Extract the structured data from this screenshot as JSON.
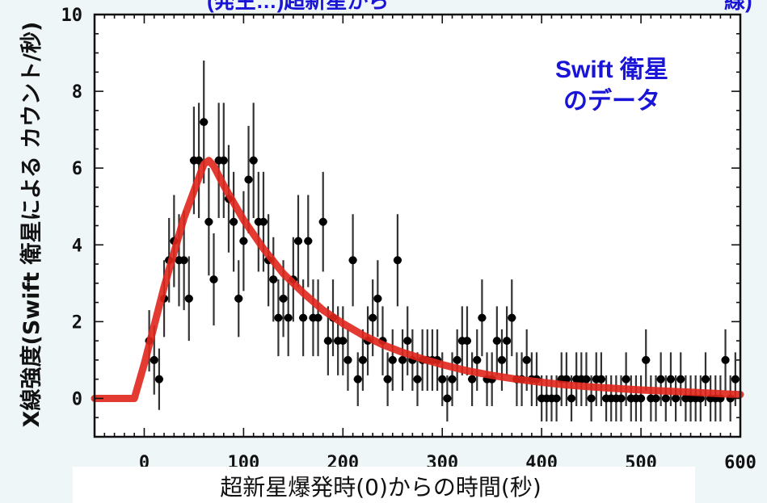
{
  "page_title_fragment_left": "(発生…)超新星から",
  "page_title_fragment_right": "線)",
  "chart_data": {
    "type": "scatter",
    "title": "",
    "xlabel": "超新星爆発時(0)からの時間(秒)",
    "ylabel": "X線強度(Swift 衛星による カウント/秒)",
    "xlim": [
      -50,
      600
    ],
    "ylim": [
      -1,
      10
    ],
    "xticks": [
      0,
      100,
      200,
      300,
      400,
      500,
      600
    ],
    "yticks": [
      0,
      2,
      4,
      6,
      8,
      10
    ],
    "x_tick_labels": [
      "0",
      "100",
      "200",
      "300",
      "400",
      "500",
      "600"
    ],
    "y_tick_labels": [
      "0",
      "2",
      "4",
      "6",
      "8",
      "10"
    ],
    "annotation": [
      "Swift 衛星",
      "のデータ"
    ],
    "grid": false,
    "series": [
      {
        "kind": "points_with_error_bars",
        "color": "#000000",
        "points": [
          [
            5,
            1.5,
            0.8
          ],
          [
            10,
            1.0,
            0.9
          ],
          [
            15,
            0.5,
            0.8
          ],
          [
            20,
            2.6,
            1.0
          ],
          [
            25,
            3.6,
            1.1
          ],
          [
            30,
            4.1,
            1.2
          ],
          [
            35,
            3.6,
            1.2
          ],
          [
            40,
            3.6,
            1.3
          ],
          [
            45,
            2.6,
            1.1
          ],
          [
            50,
            6.2,
            1.4
          ],
          [
            55,
            6.2,
            1.5
          ],
          [
            60,
            7.2,
            1.6
          ],
          [
            65,
            4.6,
            1.4
          ],
          [
            70,
            3.1,
            1.2
          ],
          [
            75,
            6.2,
            1.5
          ],
          [
            80,
            6.2,
            1.5
          ],
          [
            85,
            5.2,
            1.4
          ],
          [
            90,
            4.6,
            1.3
          ],
          [
            95,
            2.6,
            1.0
          ],
          [
            100,
            4.1,
            1.3
          ],
          [
            105,
            5.7,
            1.4
          ],
          [
            110,
            6.2,
            1.5
          ],
          [
            115,
            4.6,
            1.3
          ],
          [
            120,
            4.6,
            1.3
          ],
          [
            125,
            3.6,
            1.2
          ],
          [
            130,
            3.1,
            1.1
          ],
          [
            135,
            2.1,
            1.0
          ],
          [
            140,
            2.6,
            1.0
          ],
          [
            145,
            2.1,
            1.0
          ],
          [
            150,
            3.1,
            1.1
          ],
          [
            155,
            4.1,
            1.2
          ],
          [
            160,
            2.1,
            1.0
          ],
          [
            165,
            4.1,
            1.2
          ],
          [
            170,
            2.1,
            1.0
          ],
          [
            175,
            2.1,
            1.0
          ],
          [
            180,
            4.6,
            1.3
          ],
          [
            185,
            1.5,
            0.9
          ],
          [
            190,
            2.1,
            1.0
          ],
          [
            195,
            1.5,
            0.9
          ],
          [
            200,
            1.5,
            0.9
          ],
          [
            205,
            1.0,
            0.8
          ],
          [
            210,
            3.6,
            1.2
          ],
          [
            215,
            0.5,
            0.7
          ],
          [
            220,
            1.0,
            0.8
          ],
          [
            225,
            1.5,
            0.9
          ],
          [
            230,
            2.1,
            1.0
          ],
          [
            235,
            2.6,
            1.0
          ],
          [
            240,
            1.5,
            0.9
          ],
          [
            245,
            0.5,
            0.7
          ],
          [
            250,
            1.0,
            0.8
          ],
          [
            255,
            3.6,
            1.2
          ],
          [
            260,
            1.0,
            0.8
          ],
          [
            265,
            1.5,
            0.9
          ],
          [
            270,
            1.0,
            0.8
          ],
          [
            275,
            0.5,
            0.7
          ],
          [
            280,
            1.0,
            0.8
          ],
          [
            285,
            1.0,
            0.8
          ],
          [
            290,
            1.0,
            0.8
          ],
          [
            295,
            1.0,
            0.8
          ],
          [
            300,
            0.5,
            0.7
          ],
          [
            305,
            0.0,
            0.6
          ],
          [
            310,
            0.5,
            0.7
          ],
          [
            315,
            1.0,
            0.8
          ],
          [
            320,
            1.5,
            0.9
          ],
          [
            325,
            1.5,
            0.9
          ],
          [
            330,
            0.5,
            0.7
          ],
          [
            335,
            1.0,
            0.8
          ],
          [
            340,
            2.1,
            1.0
          ],
          [
            345,
            0.5,
            0.7
          ],
          [
            350,
            0.5,
            0.7
          ],
          [
            355,
            1.5,
            0.9
          ],
          [
            360,
            1.0,
            0.8
          ],
          [
            365,
            1.5,
            0.9
          ],
          [
            370,
            2.1,
            1.0
          ],
          [
            375,
            0.5,
            0.7
          ],
          [
            380,
            0.5,
            0.7
          ],
          [
            385,
            1.0,
            0.8
          ],
          [
            390,
            0.5,
            0.7
          ],
          [
            395,
            0.5,
            0.7
          ],
          [
            400,
            0.0,
            0.6
          ],
          [
            405,
            0.0,
            0.6
          ],
          [
            410,
            0.0,
            0.6
          ],
          [
            415,
            0.0,
            0.6
          ],
          [
            420,
            0.5,
            0.7
          ],
          [
            425,
            0.5,
            0.7
          ],
          [
            430,
            0.0,
            0.6
          ],
          [
            435,
            0.5,
            0.7
          ],
          [
            440,
            0.5,
            0.7
          ],
          [
            445,
            0.5,
            0.7
          ],
          [
            450,
            0.0,
            0.6
          ],
          [
            455,
            0.5,
            0.7
          ],
          [
            460,
            0.5,
            0.7
          ],
          [
            465,
            0.0,
            0.6
          ],
          [
            470,
            0.0,
            0.6
          ],
          [
            475,
            0.0,
            0.6
          ],
          [
            480,
            0.0,
            0.6
          ],
          [
            485,
            0.5,
            0.7
          ],
          [
            490,
            0.0,
            0.6
          ],
          [
            495,
            0.0,
            0.6
          ],
          [
            500,
            0.0,
            0.6
          ],
          [
            505,
            1.0,
            0.8
          ],
          [
            510,
            0.0,
            0.6
          ],
          [
            515,
            0.0,
            0.6
          ],
          [
            520,
            0.5,
            0.7
          ],
          [
            525,
            0.0,
            0.6
          ],
          [
            530,
            0.5,
            0.7
          ],
          [
            535,
            0.0,
            0.6
          ],
          [
            540,
            0.5,
            0.7
          ],
          [
            545,
            0.0,
            0.6
          ],
          [
            550,
            0.0,
            0.6
          ],
          [
            555,
            0.0,
            0.6
          ],
          [
            560,
            0.0,
            0.6
          ],
          [
            565,
            0.5,
            0.7
          ],
          [
            570,
            0.0,
            0.6
          ],
          [
            575,
            0.0,
            0.6
          ],
          [
            580,
            0.0,
            0.6
          ],
          [
            585,
            1.0,
            0.8
          ],
          [
            590,
            0.0,
            0.6
          ],
          [
            595,
            0.5,
            0.7
          ]
        ]
      },
      {
        "kind": "model_curve",
        "color": "#e0261c",
        "x": [
          -50,
          -10,
          0,
          10,
          20,
          30,
          40,
          50,
          60,
          65,
          70,
          80,
          90,
          100,
          120,
          140,
          160,
          180,
          200,
          220,
          240,
          260,
          280,
          300,
          325,
          350,
          375,
          400,
          425,
          450,
          475,
          500,
          525,
          550,
          575,
          600
        ],
        "y": [
          0,
          0,
          0.9,
          1.9,
          2.9,
          3.8,
          4.7,
          5.4,
          6.1,
          6.2,
          6.05,
          5.55,
          5.1,
          4.65,
          3.9,
          3.25,
          2.75,
          2.3,
          1.95,
          1.65,
          1.4,
          1.2,
          1.03,
          0.88,
          0.72,
          0.6,
          0.5,
          0.42,
          0.35,
          0.3,
          0.26,
          0.22,
          0.19,
          0.16,
          0.13,
          0.1
        ]
      }
    ]
  },
  "colors": {
    "background": "#eef6f8",
    "plot_background": "#ffffff",
    "model_curve": "#e0261c",
    "annotation": "#1a14d6"
  }
}
